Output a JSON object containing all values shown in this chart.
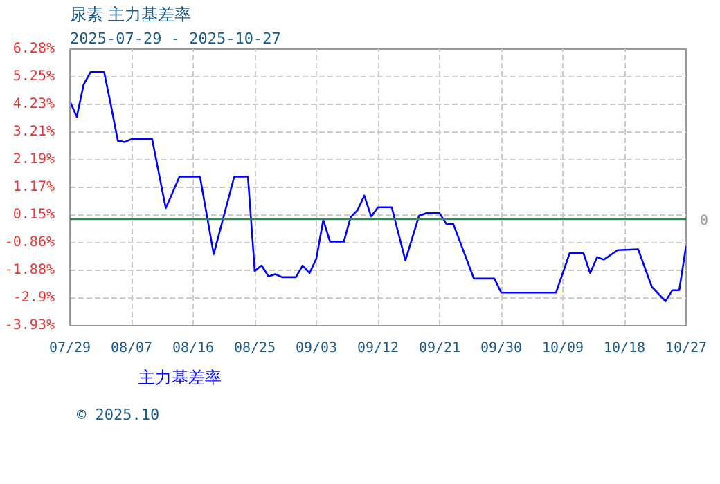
{
  "chart_data": {
    "type": "line",
    "title": "尿素  主力基差率",
    "subtitle": "2025-07-29 - 2025-10-27",
    "x": [
      "2025-07-29",
      "2025-07-30",
      "2025-07-31",
      "2025-08-01",
      "2025-08-03",
      "2025-08-04",
      "2025-08-05",
      "2025-08-06",
      "2025-08-07",
      "2025-08-10",
      "2025-08-12",
      "2025-08-14",
      "2025-08-17",
      "2025-08-19",
      "2025-08-22",
      "2025-08-24",
      "2025-08-25",
      "2025-08-26",
      "2025-08-27",
      "2025-08-28",
      "2025-08-29",
      "2025-08-31",
      "2025-09-01",
      "2025-09-02",
      "2025-09-03",
      "2025-09-04",
      "2025-09-05",
      "2025-09-07",
      "2025-09-08",
      "2025-09-09",
      "2025-09-10",
      "2025-09-11",
      "2025-09-12",
      "2025-09-14",
      "2025-09-16",
      "2025-09-18",
      "2025-09-19",
      "2025-09-21",
      "2025-09-22",
      "2025-09-23",
      "2025-09-26",
      "2025-09-29",
      "2025-09-30",
      "2025-10-08",
      "2025-10-10",
      "2025-10-12",
      "2025-10-13",
      "2025-10-14",
      "2025-10-15",
      "2025-10-17",
      "2025-10-20",
      "2025-10-22",
      "2025-10-24",
      "2025-10-25",
      "2025-10-26",
      "2025-10-27"
    ],
    "series": [
      {
        "name": "主力基差率",
        "color": "#0000ff",
        "values": [
          4.35,
          3.78,
          4.97,
          5.43,
          5.43,
          4.19,
          2.9,
          2.85,
          2.96,
          2.96,
          0.41,
          1.57,
          1.57,
          -1.29,
          1.57,
          1.57,
          -1.91,
          -1.71,
          -2.11,
          -2.03,
          -2.14,
          -2.14,
          -1.71,
          -1.99,
          -1.45,
          -0.03,
          -0.83,
          -0.83,
          0.07,
          0.33,
          0.87,
          0.1,
          0.44,
          0.44,
          -1.52,
          0.13,
          0.22,
          0.22,
          -0.18,
          -0.18,
          -2.19,
          -2.19,
          -2.71,
          -2.71,
          -1.25,
          -1.25,
          -1.99,
          -1.4,
          -1.49,
          -1.14,
          -1.11,
          -2.5,
          -3.03,
          -2.62,
          -2.62,
          -0.99
        ]
      }
    ],
    "xlim": [
      "2025-07-29",
      "2025-10-27"
    ],
    "xticks": [
      {
        "value": "2025-07-29",
        "label": "07/29"
      },
      {
        "value": "2025-08-07",
        "label": "08/07"
      },
      {
        "value": "2025-08-16",
        "label": "08/16"
      },
      {
        "value": "2025-08-25",
        "label": "08/25"
      },
      {
        "value": "2025-09-03",
        "label": "09/03"
      },
      {
        "value": "2025-09-12",
        "label": "09/12"
      },
      {
        "value": "2025-09-21",
        "label": "09/21"
      },
      {
        "value": "2025-09-30",
        "label": "09/30"
      },
      {
        "value": "2025-10-09",
        "label": "10/09"
      },
      {
        "value": "2025-10-18",
        "label": "10/18"
      },
      {
        "value": "2025-10-27",
        "label": "10/27"
      }
    ],
    "ylim": [
      -3.93,
      6.28
    ],
    "yticks": [
      {
        "value": -3.93,
        "label": "-3.93%"
      },
      {
        "value": -2.9,
        "label": "-2.9%"
      },
      {
        "value": -1.88,
        "label": "-1.88%"
      },
      {
        "value": -0.86,
        "label": "-0.86%"
      },
      {
        "value": 0.15,
        "label": "0.15%"
      },
      {
        "value": 1.17,
        "label": "1.17%"
      },
      {
        "value": 2.19,
        "label": "2.19%"
      },
      {
        "value": 3.21,
        "label": "3.21%"
      },
      {
        "value": 4.23,
        "label": "4.23%"
      },
      {
        "value": 5.25,
        "label": "5.25%"
      },
      {
        "value": 6.28,
        "label": "6.28%"
      }
    ],
    "ref_lines": [
      {
        "axis": "y",
        "value": 0,
        "label": "0",
        "color": "#2e8b57"
      }
    ],
    "grid": true,
    "legend": "bottom",
    "marker": "none",
    "line_style": "solid",
    "annotations": [
      "© 2025.10"
    ]
  }
}
